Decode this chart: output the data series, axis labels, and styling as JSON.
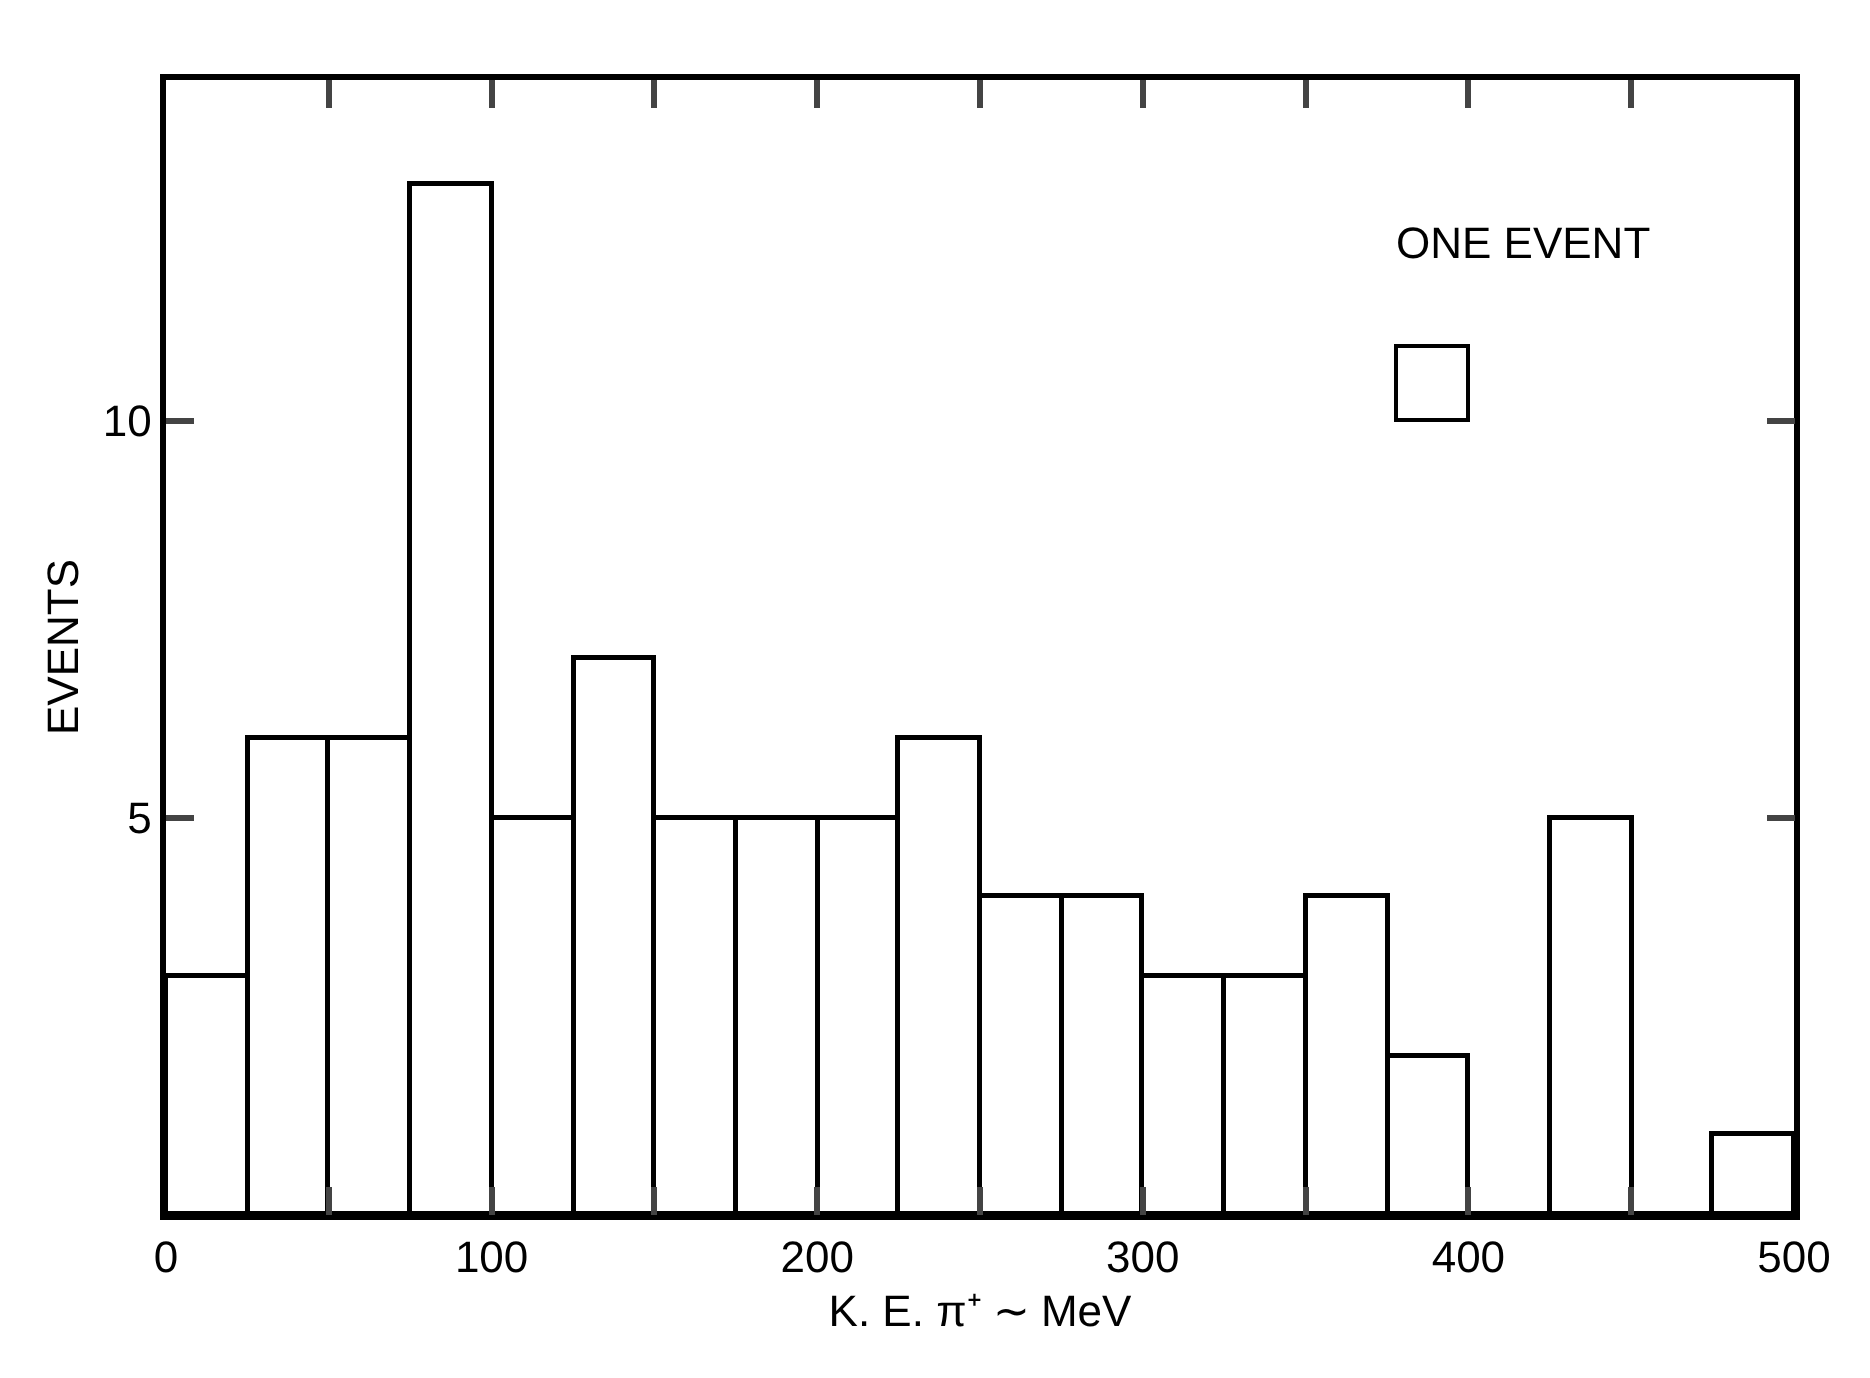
{
  "chart_data": {
    "type": "histogram",
    "xlabel": "K. E. π⁺ ∼ MeV",
    "ylabel": "EVENTS",
    "bins": [
      0,
      25,
      50,
      75,
      100,
      125,
      150,
      175,
      200,
      225,
      250,
      275,
      300,
      325,
      350,
      375,
      400,
      425,
      450,
      475,
      500
    ],
    "values": [
      3,
      6,
      6,
      13,
      5,
      7,
      5,
      5,
      5,
      6,
      4,
      4,
      3,
      3,
      4,
      2,
      0,
      5,
      0,
      1
    ],
    "color": "#000000",
    "xlim": [
      0,
      500
    ],
    "xticks": [
      0,
      {
        "value": 50,
        "label": null
      },
      100,
      {
        "value": 150,
        "label": null
      },
      200,
      {
        "value": 250,
        "label": null
      },
      300,
      {
        "value": 350,
        "label": null
      },
      400,
      {
        "value": 450,
        "label": null
      },
      500
    ],
    "ylim": [
      0,
      14.3
    ],
    "yticks": [
      5,
      10
    ],
    "grid": false,
    "annotations": [
      "ONE EVENT"
    ]
  }
}
